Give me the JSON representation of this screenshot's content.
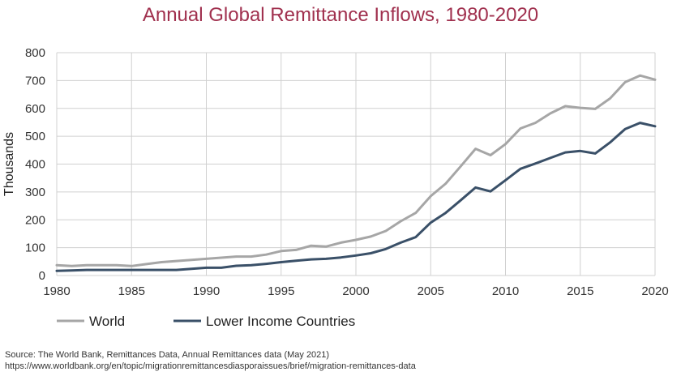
{
  "chart_data": {
    "type": "line",
    "title": "Annual Global Remittance Inflows, 1980-2020",
    "xlabel": "",
    "ylabel": "Thousands",
    "xlim": [
      1980,
      2020
    ],
    "ylim": [
      0,
      800
    ],
    "xticks": [
      "1980",
      "1985",
      "1990",
      "1995",
      "2000",
      "2005",
      "2010",
      "2015",
      "2020"
    ],
    "yticks": [
      "0",
      "100",
      "200",
      "300",
      "400",
      "500",
      "600",
      "700",
      "800"
    ],
    "grid": true,
    "legend_position": "bottom-left",
    "x": [
      1980,
      1981,
      1982,
      1983,
      1984,
      1985,
      1986,
      1987,
      1988,
      1989,
      1990,
      1991,
      1992,
      1993,
      1994,
      1995,
      1996,
      1997,
      1998,
      1999,
      2000,
      2001,
      2002,
      2003,
      2004,
      2005,
      2006,
      2007,
      2008,
      2009,
      2010,
      2011,
      2012,
      2013,
      2014,
      2015,
      2016,
      2017,
      2018,
      2019,
      2020
    ],
    "series": [
      {
        "name": "World",
        "color": "#a6a6a6",
        "values": [
          37,
          34,
          37,
          37,
          37,
          34,
          41,
          48,
          52,
          56,
          60,
          64,
          68,
          68,
          75,
          88,
          92,
          107,
          104,
          118,
          128,
          140,
          160,
          195,
          225,
          285,
          330,
          392,
          455,
          432,
          472,
          528,
          548,
          582,
          608,
          602,
          598,
          636,
          694,
          718,
          703
        ]
      },
      {
        "name": "Lower Income Countries",
        "color": "#3a5068",
        "values": [
          17,
          18,
          20,
          20,
          20,
          20,
          20,
          20,
          20,
          24,
          28,
          28,
          35,
          37,
          42,
          48,
          53,
          58,
          60,
          65,
          72,
          80,
          95,
          118,
          138,
          190,
          225,
          270,
          316,
          302,
          342,
          383,
          402,
          422,
          442,
          447,
          438,
          478,
          526,
          548,
          536
        ]
      }
    ]
  },
  "source": {
    "line1": "Source: The World Bank, Remittances Data, Annual Remittances data (May 2021)",
    "line2": "https://www.worldbank.org/en/topic/migrationremittancesdiasporaissues/brief/migration-remittances-data"
  }
}
